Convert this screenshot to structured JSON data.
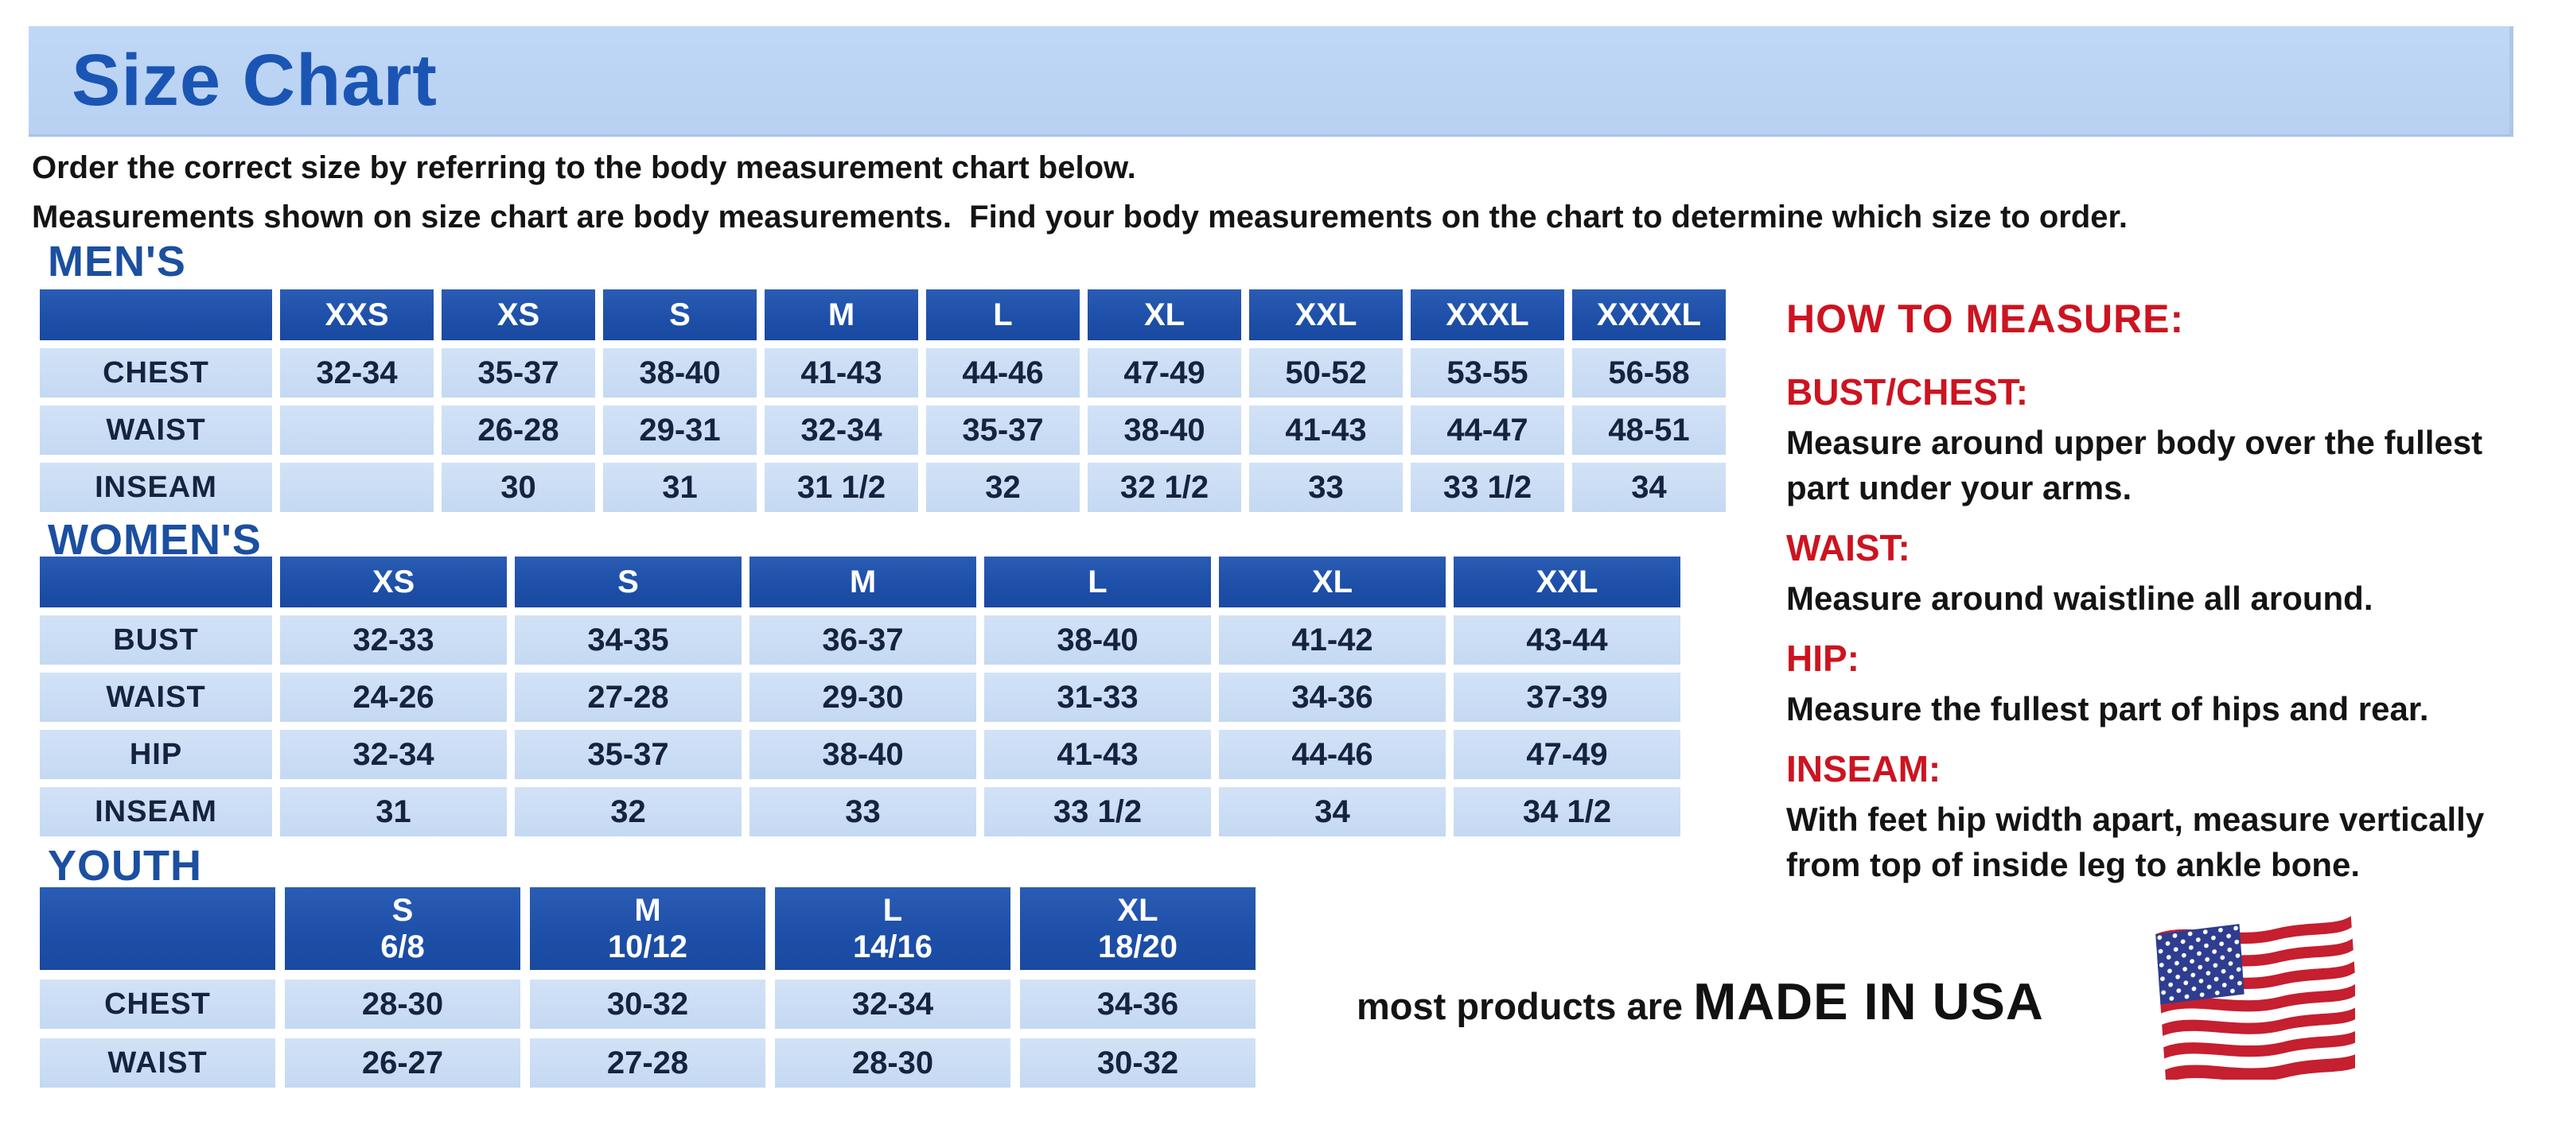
{
  "page": {
    "title": "Size Chart",
    "intro_line1": "Order the correct size by referring to the body measurement chart below.",
    "intro_line2": "Measurements shown on size chart are body measurements.  Find your body measurements on the chart to determine which size to order."
  },
  "tables": {
    "mens": {
      "heading": "MEN'S",
      "columns": [
        "XXS",
        "XS",
        "S",
        "M",
        "L",
        "XL",
        "XXL",
        "XXXL",
        "XXXXL"
      ],
      "rows": [
        {
          "label": "CHEST",
          "values": [
            "32-34",
            "35-37",
            "38-40",
            "41-43",
            "44-46",
            "47-49",
            "50-52",
            "53-55",
            "56-58"
          ]
        },
        {
          "label": "WAIST",
          "values": [
            "",
            "26-28",
            "29-31",
            "32-34",
            "35-37",
            "38-40",
            "41-43",
            "44-47",
            "48-51"
          ]
        },
        {
          "label": "INSEAM",
          "values": [
            "",
            "30",
            "31",
            "31 1/2",
            "32",
            "32 1/2",
            "33",
            "33 1/2",
            "34"
          ]
        }
      ]
    },
    "womens": {
      "heading": "WOMEN'S",
      "columns": [
        "XS",
        "S",
        "M",
        "L",
        "XL",
        "XXL"
      ],
      "rows": [
        {
          "label": "BUST",
          "values": [
            "32-33",
            "34-35",
            "36-37",
            "38-40",
            "41-42",
            "43-44"
          ]
        },
        {
          "label": "WAIST",
          "values": [
            "24-26",
            "27-28",
            "29-30",
            "31-33",
            "34-36",
            "37-39"
          ]
        },
        {
          "label": "HIP",
          "values": [
            "32-34",
            "35-37",
            "38-40",
            "41-43",
            "44-46",
            "47-49"
          ]
        },
        {
          "label": "INSEAM",
          "values": [
            "31",
            "32",
            "33",
            "33 1/2",
            "34",
            "34 1/2"
          ]
        }
      ]
    },
    "youth": {
      "heading": "YOUTH",
      "columns": [
        "S\n6/8",
        "M\n10/12",
        "L\n14/16",
        "XL\n18/20"
      ],
      "rows": [
        {
          "label": "CHEST",
          "values": [
            "28-30",
            "30-32",
            "32-34",
            "34-36"
          ]
        },
        {
          "label": "WAIST",
          "values": [
            "26-27",
            "27-28",
            "28-30",
            "30-32"
          ]
        }
      ]
    }
  },
  "how_to_measure": {
    "heading": "HOW TO MEASURE:",
    "items": [
      {
        "term": "BUST/CHEST:",
        "description": "Measure around upper body over the fullest part under your arms."
      },
      {
        "term": "WAIST:",
        "description": "Measure around waistline all around."
      },
      {
        "term": "HIP:",
        "description": "Measure the fullest part of hips and rear."
      },
      {
        "term": "INSEAM:",
        "description": "With feet hip width apart, measure vertically from top of inside leg to ankle bone."
      }
    ]
  },
  "footer": {
    "prefix": "most products are ",
    "emphasis": "MADE IN USA",
    "flag_icon": "usa-flag-icon"
  },
  "colors": {
    "banner_background": "#bcd4f3",
    "title_blue": "#1b55b4",
    "section_heading_blue": "#1b4fa0",
    "table_header_blue": "#1d4fa8",
    "table_cell_blue": "#c7dbf3",
    "cell_text_navy": "#16233f",
    "accent_red": "#cc1420",
    "flag_red": "#c51f30",
    "flag_blue": "#2e3d8f"
  }
}
